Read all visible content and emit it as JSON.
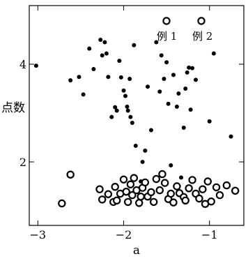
{
  "chart_data": {
    "type": "scatter",
    "xlabel": "a",
    "ylabel": "点数",
    "xlim": [
      -3.1,
      -0.6
    ],
    "ylim": [
      0.7,
      5.2
    ],
    "xticks": [
      -3,
      -2,
      -1
    ],
    "xtick_labels": [
      "−3",
      "−2",
      "−1"
    ],
    "yticks": [
      2,
      4
    ],
    "ytick_labels": [
      "2",
      "4"
    ],
    "grid": false,
    "legend_position": "top-right",
    "series": [
      {
        "name": "例 1",
        "marker": "filled-circle",
        "x": [
          -3.02,
          -2.62,
          -2.52,
          -2.47,
          -2.4,
          -2.35,
          -2.27,
          -2.25,
          -2.22,
          -2.2,
          -2.18,
          -2.14,
          -2.1,
          -2.08,
          -2.05,
          -2.03,
          -2.0,
          -1.98,
          -1.96,
          -1.95,
          -1.93,
          -1.92,
          -1.9,
          -1.88,
          -1.86,
          -1.8,
          -1.78,
          -1.75,
          -1.72,
          -1.68,
          -1.62,
          -1.58,
          -1.56,
          -1.53,
          -1.5,
          -1.48,
          -1.45,
          -1.42,
          -1.38,
          -1.36,
          -1.33,
          -1.3,
          -1.28,
          -1.26,
          -1.24,
          -1.22,
          -1.2,
          -1.16,
          -1.0,
          -0.95,
          -0.75
        ],
        "y": [
          3.97,
          3.67,
          3.74,
          3.38,
          4.32,
          3.9,
          4.5,
          4.18,
          4.45,
          4.22,
          3.74,
          2.92,
          3.12,
          3.05,
          4.07,
          3.73,
          3.46,
          3.35,
          3.13,
          3.05,
          3.7,
          2.92,
          2.8,
          4.39,
          2.33,
          1.6,
          2.0,
          2.23,
          3.54,
          2.65,
          4.45,
          3.44,
          4.18,
          3.7,
          4.04,
          3.19,
          1.93,
          3.78,
          3.13,
          3.4,
          1.68,
          2.7,
          3.5,
          3.83,
          3.93,
          3.07,
          3.92,
          3.68,
          2.83,
          4.22,
          2.52
        ]
      },
      {
        "name": "例 2",
        "marker": "open-circle",
        "x": [
          -2.72,
          -2.62,
          -2.28,
          -2.25,
          -2.18,
          -2.12,
          -2.1,
          -2.08,
          -2.04,
          -2.0,
          -1.97,
          -1.95,
          -1.92,
          -1.9,
          -1.88,
          -1.85,
          -1.82,
          -1.8,
          -1.78,
          -1.75,
          -1.72,
          -1.68,
          -1.65,
          -1.62,
          -1.58,
          -1.55,
          -1.52,
          -1.48,
          -1.45,
          -1.42,
          -1.38,
          -1.35,
          -1.3,
          -1.28,
          -1.24,
          -1.2,
          -1.16,
          -1.12,
          -1.08,
          -1.05,
          -1.02,
          -0.98,
          -0.92,
          -0.88,
          -0.8,
          -0.7
        ],
        "y": [
          1.15,
          1.74,
          1.44,
          1.23,
          1.34,
          1.18,
          1.49,
          1.21,
          1.35,
          1.64,
          1.39,
          1.18,
          1.54,
          1.32,
          1.67,
          1.42,
          1.16,
          1.29,
          1.47,
          1.58,
          1.29,
          1.38,
          1.18,
          1.65,
          1.42,
          1.75,
          1.57,
          1.24,
          1.35,
          1.17,
          1.5,
          1.36,
          1.28,
          1.21,
          1.46,
          1.63,
          1.35,
          1.25,
          1.44,
          1.14,
          1.6,
          1.19,
          1.48,
          1.32,
          1.52,
          1.41
        ]
      }
    ]
  }
}
